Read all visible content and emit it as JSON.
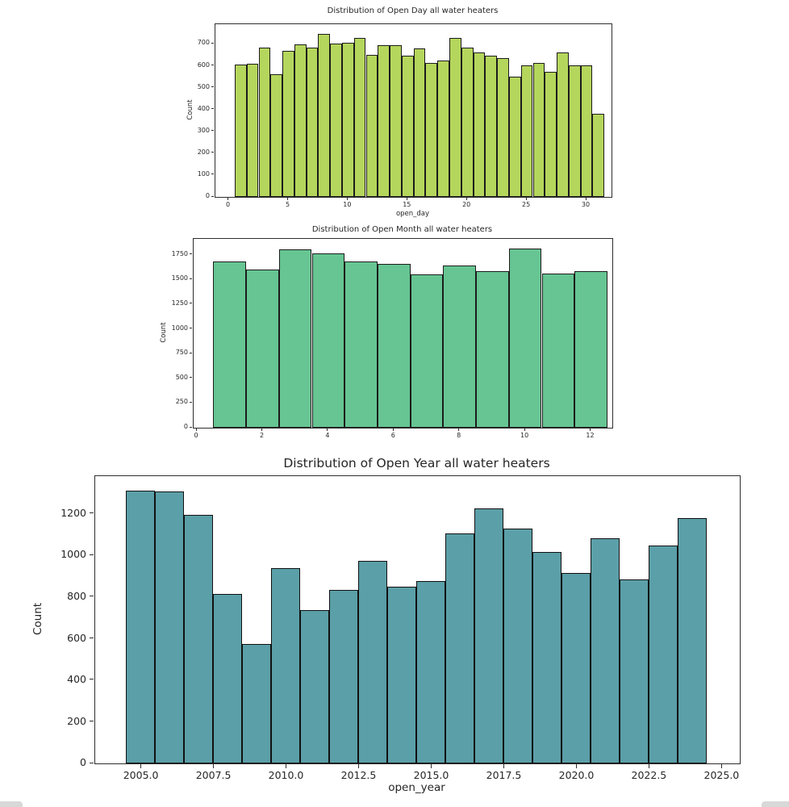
{
  "page": {
    "background": "#ffffff",
    "corner_tab_color": "#d8d8d8"
  },
  "chart_data": [
    {
      "type": "bar",
      "subtype": "histogram",
      "title": "Distribution of Open Day all water heaters",
      "xlabel": "open_day",
      "ylabel": "Count",
      "bar_color": "#b5d65c",
      "edge_color": "#1c1c1c",
      "grid": false,
      "legend": "none",
      "bin_start": 0.5,
      "bin_width": 1,
      "categories": [
        1,
        2,
        3,
        4,
        5,
        6,
        7,
        8,
        9,
        10,
        11,
        12,
        13,
        14,
        15,
        16,
        17,
        18,
        19,
        20,
        21,
        22,
        23,
        24,
        25,
        26,
        27,
        28,
        29,
        30,
        31
      ],
      "values": [
        605,
        610,
        683,
        560,
        668,
        699,
        684,
        747,
        703,
        706,
        726,
        649,
        695,
        693,
        645,
        678,
        614,
        624,
        726,
        684,
        660,
        645,
        634,
        550,
        602,
        614,
        572,
        662,
        601,
        601,
        381
      ],
      "xlim": [
        -1.12,
        32.1
      ],
      "ylim": [
        0,
        790
      ],
      "xticks": {
        "values": [
          0,
          5,
          10,
          15,
          20,
          25,
          30
        ],
        "labels": [
          "0",
          "5",
          "10",
          "15",
          "20",
          "25",
          "30"
        ]
      },
      "yticks": {
        "values": [
          0,
          100,
          200,
          300,
          400,
          500,
          600,
          700
        ],
        "labels": [
          "0",
          "100",
          "200",
          "300",
          "400",
          "500",
          "600",
          "700"
        ]
      }
    },
    {
      "type": "bar",
      "subtype": "histogram",
      "title": "Distribution of Open Month all water heaters",
      "xlabel": "",
      "ylabel": "Count",
      "bar_color": "#66c592",
      "edge_color": "#1c1c1c",
      "grid": false,
      "legend": "none",
      "bin_start": 0.5,
      "bin_width": 1,
      "categories": [
        1,
        2,
        3,
        4,
        5,
        6,
        7,
        8,
        9,
        10,
        11,
        12
      ],
      "values": [
        1680,
        1600,
        1805,
        1765,
        1685,
        1660,
        1550,
        1645,
        1580,
        1815,
        1560,
        1580
      ],
      "xlim": [
        -0.1,
        12.65
      ],
      "ylim": [
        0,
        1910
      ],
      "xticks": {
        "values": [
          0,
          2,
          4,
          6,
          8,
          10,
          12
        ],
        "labels": [
          "0",
          "2",
          "4",
          "6",
          "8",
          "10",
          "12"
        ]
      },
      "yticks": {
        "values": [
          0,
          250,
          500,
          750,
          1000,
          1250,
          1500,
          1750
        ],
        "labels": [
          "0",
          "250",
          "500",
          "750",
          "1000",
          "1250",
          "1500",
          "1750"
        ]
      }
    },
    {
      "type": "bar",
      "subtype": "histogram",
      "title": "Distribution of Open Year all water heaters",
      "xlabel": "open_year",
      "ylabel": "Count",
      "bar_color": "#5b9fa8",
      "edge_color": "#111111",
      "grid": false,
      "legend": "none",
      "bin_start": 2004.45,
      "bin_width": 1.0,
      "categories": [
        2005,
        2006,
        2007,
        2008,
        2009,
        2010,
        2011,
        2012,
        2013,
        2014,
        2015,
        2016,
        2017,
        2018,
        2019,
        2020,
        2021,
        2022,
        2023,
        2024
      ],
      "values": [
        1310,
        1305,
        1195,
        815,
        575,
        940,
        735,
        835,
        975,
        850,
        875,
        1105,
        1225,
        1130,
        1015,
        915,
        1080,
        885,
        1045,
        1180
      ],
      "xlim": [
        2003.4,
        2025.6
      ],
      "ylim": [
        0,
        1380
      ],
      "xticks": {
        "values": [
          2005,
          2007.5,
          2010,
          2012.5,
          2015,
          2017.5,
          2020,
          2022.5,
          2025
        ],
        "labels": [
          "2005.0",
          "2007.5",
          "2010.0",
          "2012.5",
          "2015.0",
          "2017.5",
          "2020.0",
          "2022.5",
          "2025.0"
        ]
      },
      "yticks": {
        "values": [
          0,
          200,
          400,
          600,
          800,
          1000,
          1200
        ],
        "labels": [
          "0",
          "200",
          "400",
          "600",
          "800",
          "1000",
          "1200"
        ]
      }
    }
  ]
}
